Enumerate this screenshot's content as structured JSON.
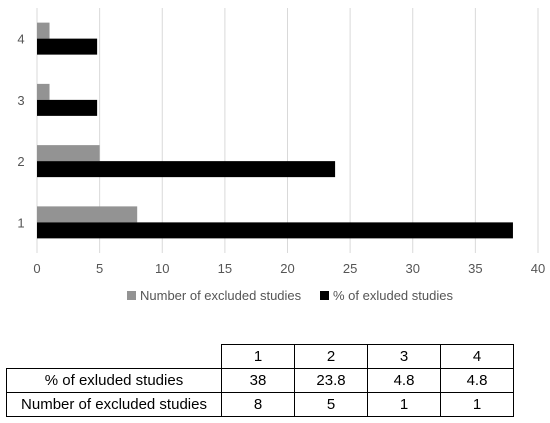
{
  "chart_data": {
    "type": "bar",
    "orientation": "horizontal",
    "categories": [
      "1",
      "2",
      "3",
      "4"
    ],
    "series": [
      {
        "name": "Number of excluded studies",
        "values": [
          8,
          5,
          1,
          1
        ],
        "color": "#939393"
      },
      {
        "name": "% of exluded studies",
        "values": [
          38,
          23.8,
          4.8,
          4.8
        ],
        "color": "#000000"
      }
    ],
    "xlim": [
      0,
      40
    ],
    "xticks": [
      "0",
      "5",
      "10",
      "15",
      "20",
      "25",
      "30",
      "35",
      "40"
    ],
    "grid": "vertical",
    "legend": "bottom",
    "title": "",
    "xlabel": "",
    "ylabel": ""
  },
  "table": {
    "headers": [
      "1",
      "2",
      "3",
      "4"
    ],
    "rows": [
      {
        "label": "% of exluded studies",
        "values": [
          "38",
          "23.8",
          "4.8",
          "4.8"
        ]
      },
      {
        "label": "Number of excluded studies",
        "values": [
          "8",
          "5",
          "1",
          "1"
        ]
      }
    ]
  }
}
